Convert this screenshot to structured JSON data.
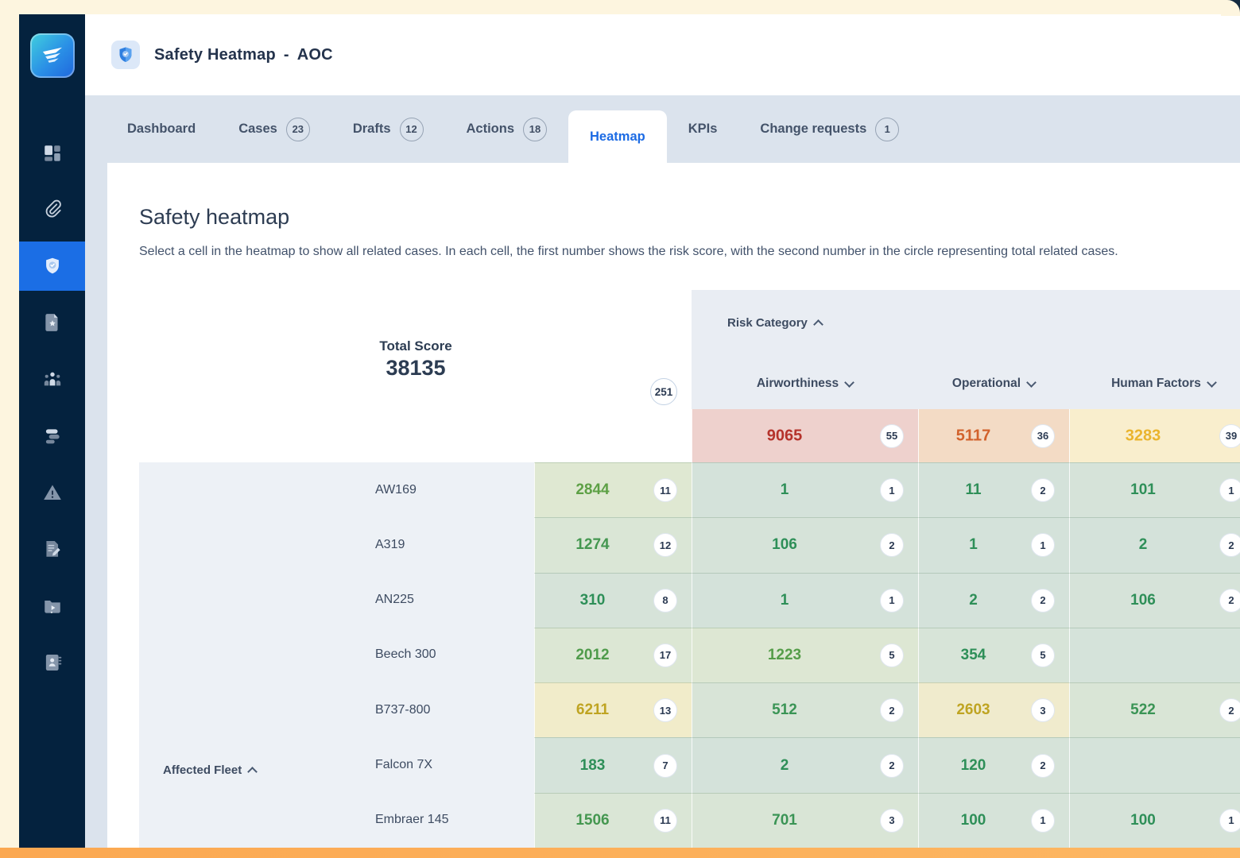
{
  "header": {
    "title": "Safety Heatmap",
    "dash": "-",
    "context": "AOC"
  },
  "tabs": [
    {
      "label": "Dashboard",
      "badge": null,
      "active": false
    },
    {
      "label": "Cases",
      "badge": "23",
      "active": false
    },
    {
      "label": "Drafts",
      "badge": "12",
      "active": false
    },
    {
      "label": "Actions",
      "badge": "18",
      "active": false
    },
    {
      "label": "Heatmap",
      "badge": null,
      "active": true
    },
    {
      "label": "KPIs",
      "badge": null,
      "active": false
    },
    {
      "label": "Change requests",
      "badge": "1",
      "active": false
    }
  ],
  "sidebar": {
    "items": [
      {
        "icon": "dashboard-grid-icon",
        "active": false
      },
      {
        "icon": "paperclip-icon",
        "active": false
      },
      {
        "icon": "shield-check-icon",
        "active": true
      },
      {
        "icon": "document-star-icon",
        "active": false
      },
      {
        "icon": "team-icon",
        "active": false
      },
      {
        "icon": "stack-icon",
        "active": false
      },
      {
        "icon": "warning-triangle-icon",
        "active": false
      },
      {
        "icon": "document-edit-icon",
        "active": false
      },
      {
        "icon": "media-folder-icon",
        "active": false
      },
      {
        "icon": "contacts-book-icon",
        "active": false
      }
    ]
  },
  "heatmap": {
    "title": "Safety heatmap",
    "description": "Select a cell in the heatmap to show all related cases. In each cell, the first number shows the risk score, with the second number in the circle representing total related cases.",
    "total_score_label": "Total Score",
    "total_score": "38135",
    "total_cases": "251",
    "col_axis_label": "Risk Category",
    "row_axis_label": "Affected Fleet",
    "columns": [
      {
        "label": "Airworthiness",
        "total": {
          "score": "9065",
          "cases": "55",
          "bg": "#eed1cd",
          "color": "#b5332c"
        }
      },
      {
        "label": "Operational",
        "total": {
          "score": "5117",
          "cases": "36",
          "bg": "#f3dbc5",
          "color": "#d2622c"
        }
      },
      {
        "label": "Human Factors",
        "total": {
          "score": "3283",
          "cases": "39",
          "bg": "#f9eecd",
          "color": "#eab42d"
        }
      }
    ],
    "rows": [
      {
        "fleet": "AW169",
        "total": {
          "score": "2844",
          "cases": "11",
          "bg": "#dfe8d2",
          "color": "#5da045"
        },
        "cells": [
          {
            "score": "1",
            "cases": "1",
            "bg": "#d4e2da",
            "color": "#2e8f58"
          },
          {
            "score": "11",
            "cases": "2",
            "bg": "#d4e2da",
            "color": "#2e8f58"
          },
          {
            "score": "101",
            "cases": "1",
            "bg": "#d6e3d9",
            "color": "#2e8f58"
          }
        ]
      },
      {
        "fleet": "A319",
        "total": {
          "score": "1274",
          "cases": "12",
          "bg": "#dae6d6",
          "color": "#449750"
        },
        "cells": [
          {
            "score": "106",
            "cases": "2",
            "bg": "#d6e3d9",
            "color": "#2e8f58"
          },
          {
            "score": "1",
            "cases": "1",
            "bg": "#d4e2da",
            "color": "#2e8f58"
          },
          {
            "score": "2",
            "cases": "2",
            "bg": "#d4e2da",
            "color": "#2e8f58"
          }
        ]
      },
      {
        "fleet": "AN225",
        "total": {
          "score": "310",
          "cases": "8",
          "bg": "#d6e3d9",
          "color": "#2e8f58"
        },
        "cells": [
          {
            "score": "1",
            "cases": "1",
            "bg": "#d4e2da",
            "color": "#2e8f58"
          },
          {
            "score": "2",
            "cases": "2",
            "bg": "#d4e2da",
            "color": "#2e8f58"
          },
          {
            "score": "106",
            "cases": "2",
            "bg": "#d6e3d9",
            "color": "#2e8f58"
          }
        ]
      },
      {
        "fleet": "Beech 300",
        "total": {
          "score": "2012",
          "cases": "17",
          "bg": "#dce7d4",
          "color": "#4f9b4b"
        },
        "cells": [
          {
            "score": "1223",
            "cases": "5",
            "bg": "#dde7d3",
            "color": "#559d49"
          },
          {
            "score": "354",
            "cases": "5",
            "bg": "#d7e4d8",
            "color": "#2e8f58"
          },
          {
            "score": null,
            "cases": null,
            "bg": "#d5e3da",
            "color": "#2e8f58"
          }
        ]
      },
      {
        "fleet": "B737-800",
        "total": {
          "score": "6211",
          "cases": "13",
          "bg": "#f1ecca",
          "color": "#bfa422"
        },
        "cells": [
          {
            "score": "512",
            "cases": "2",
            "bg": "#d8e4d7",
            "color": "#3a9455"
          },
          {
            "score": "2603",
            "cases": "3",
            "bg": "#f0ebcd",
            "color": "#bfa422"
          },
          {
            "score": "522",
            "cases": "2",
            "bg": "#d9e5d6",
            "color": "#3a9455"
          }
        ]
      },
      {
        "fleet": "Falcon 7X",
        "total": {
          "score": "183",
          "cases": "7",
          "bg": "#d5e3da",
          "color": "#2e8f58"
        },
        "cells": [
          {
            "score": "2",
            "cases": "2",
            "bg": "#d4e2da",
            "color": "#2e8f58"
          },
          {
            "score": "120",
            "cases": "2",
            "bg": "#d6e3d9",
            "color": "#2e8f58"
          },
          {
            "score": null,
            "cases": null,
            "bg": "#d5e3da",
            "color": "#2e8f58"
          }
        ]
      },
      {
        "fleet": "Embraer 145",
        "total": {
          "score": "1506",
          "cases": "11",
          "bg": "#dae6d6",
          "color": "#449750"
        },
        "cells": [
          {
            "score": "701",
            "cases": "3",
            "bg": "#d9e5d6",
            "color": "#3a9455"
          },
          {
            "score": "100",
            "cases": "1",
            "bg": "#d6e3d9",
            "color": "#2e8f58"
          },
          {
            "score": "100",
            "cases": "1",
            "bg": "#d6e3d9",
            "color": "#2e8f58"
          }
        ]
      }
    ]
  },
  "colors": {
    "sidebar_bg": "#04223e",
    "sidebar_active": "#1b6ee5",
    "tab_active_text": "#1c6be4",
    "page_bg": "#dbe3ed",
    "frame_cream": "#fdf5df",
    "bottom_bar_orange": "#fcae58"
  }
}
